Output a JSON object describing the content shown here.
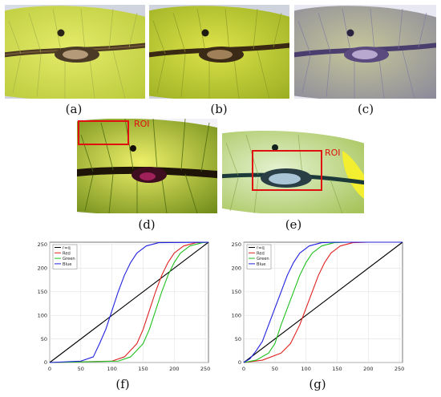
{
  "panels": [
    {
      "id": "a",
      "caption": "(a)",
      "tint": "natural"
    },
    {
      "id": "b",
      "caption": "(b)",
      "tint": "saturated"
    },
    {
      "id": "c",
      "caption": "(c)",
      "tint": "purple"
    },
    {
      "id": "d",
      "caption": "(d)",
      "tint": "enhanced",
      "roi_label": "ROI"
    },
    {
      "id": "e",
      "caption": "(e)",
      "tint": "bleached",
      "roi_label": "ROI"
    }
  ],
  "colors": {
    "roi_box": "#e01010",
    "identity": "#000000",
    "red": "#e02020",
    "green": "#20c020",
    "blue": "#2020e0"
  },
  "chart_data": [
    {
      "id": "f",
      "caption": "(f)",
      "type": "line",
      "xlim": [
        0,
        255
      ],
      "ylim": [
        0,
        255
      ],
      "x_ticks": [
        0,
        50,
        100,
        150,
        200,
        250
      ],
      "y_ticks": [
        0,
        50,
        100,
        150,
        200,
        250
      ],
      "grid": true,
      "legend_position": "top-left",
      "series": [
        {
          "name": "r=q",
          "color_key": "identity",
          "x": [
            0,
            255
          ],
          "y": [
            0,
            255
          ]
        },
        {
          "name": "Red",
          "color_key": "red",
          "x": [
            0,
            100,
            120,
            140,
            150,
            160,
            170,
            180,
            190,
            200,
            215,
            235,
            255
          ],
          "y": [
            0,
            3,
            12,
            40,
            70,
            110,
            150,
            185,
            212,
            232,
            247,
            254,
            255
          ]
        },
        {
          "name": "Green",
          "color_key": "green",
          "x": [
            0,
            110,
            130,
            150,
            160,
            170,
            180,
            190,
            200,
            210,
            225,
            245,
            255
          ],
          "y": [
            0,
            3,
            12,
            40,
            70,
            110,
            150,
            185,
            212,
            232,
            247,
            254,
            255
          ]
        },
        {
          "name": "Blue",
          "color_key": "blue",
          "x": [
            0,
            50,
            70,
            80,
            90,
            100,
            110,
            120,
            130,
            140,
            155,
            175,
            255
          ],
          "y": [
            0,
            3,
            12,
            40,
            70,
            110,
            150,
            185,
            212,
            232,
            247,
            254,
            255
          ]
        }
      ]
    },
    {
      "id": "g",
      "caption": "(g)",
      "type": "line",
      "xlim": [
        0,
        255
      ],
      "ylim": [
        0,
        255
      ],
      "x_ticks": [
        0,
        50,
        100,
        150,
        200,
        250
      ],
      "y_ticks": [
        0,
        50,
        100,
        150,
        200,
        250
      ],
      "grid": true,
      "legend_position": "top-left",
      "series": [
        {
          "name": "r=q",
          "color_key": "identity",
          "x": [
            0,
            255
          ],
          "y": [
            0,
            255
          ]
        },
        {
          "name": "Red",
          "color_key": "red",
          "x": [
            0,
            30,
            60,
            75,
            90,
            100,
            110,
            120,
            130,
            140,
            155,
            175,
            200,
            255
          ],
          "y": [
            0,
            5,
            20,
            40,
            80,
            115,
            150,
            185,
            212,
            232,
            247,
            254,
            255,
            255
          ]
        },
        {
          "name": "Green",
          "color_key": "green",
          "x": [
            0,
            20,
            40,
            50,
            60,
            70,
            80,
            90,
            100,
            110,
            125,
            145,
            170,
            255
          ],
          "y": [
            0,
            5,
            20,
            40,
            80,
            115,
            150,
            185,
            212,
            232,
            247,
            254,
            255,
            255
          ]
        },
        {
          "name": "Blue",
          "color_key": "blue",
          "x": [
            0,
            10,
            20,
            30,
            40,
            50,
            60,
            70,
            80,
            90,
            105,
            125,
            150,
            255
          ],
          "y": [
            0,
            8,
            25,
            45,
            80,
            115,
            150,
            185,
            212,
            232,
            247,
            254,
            255,
            255
          ]
        }
      ]
    }
  ]
}
